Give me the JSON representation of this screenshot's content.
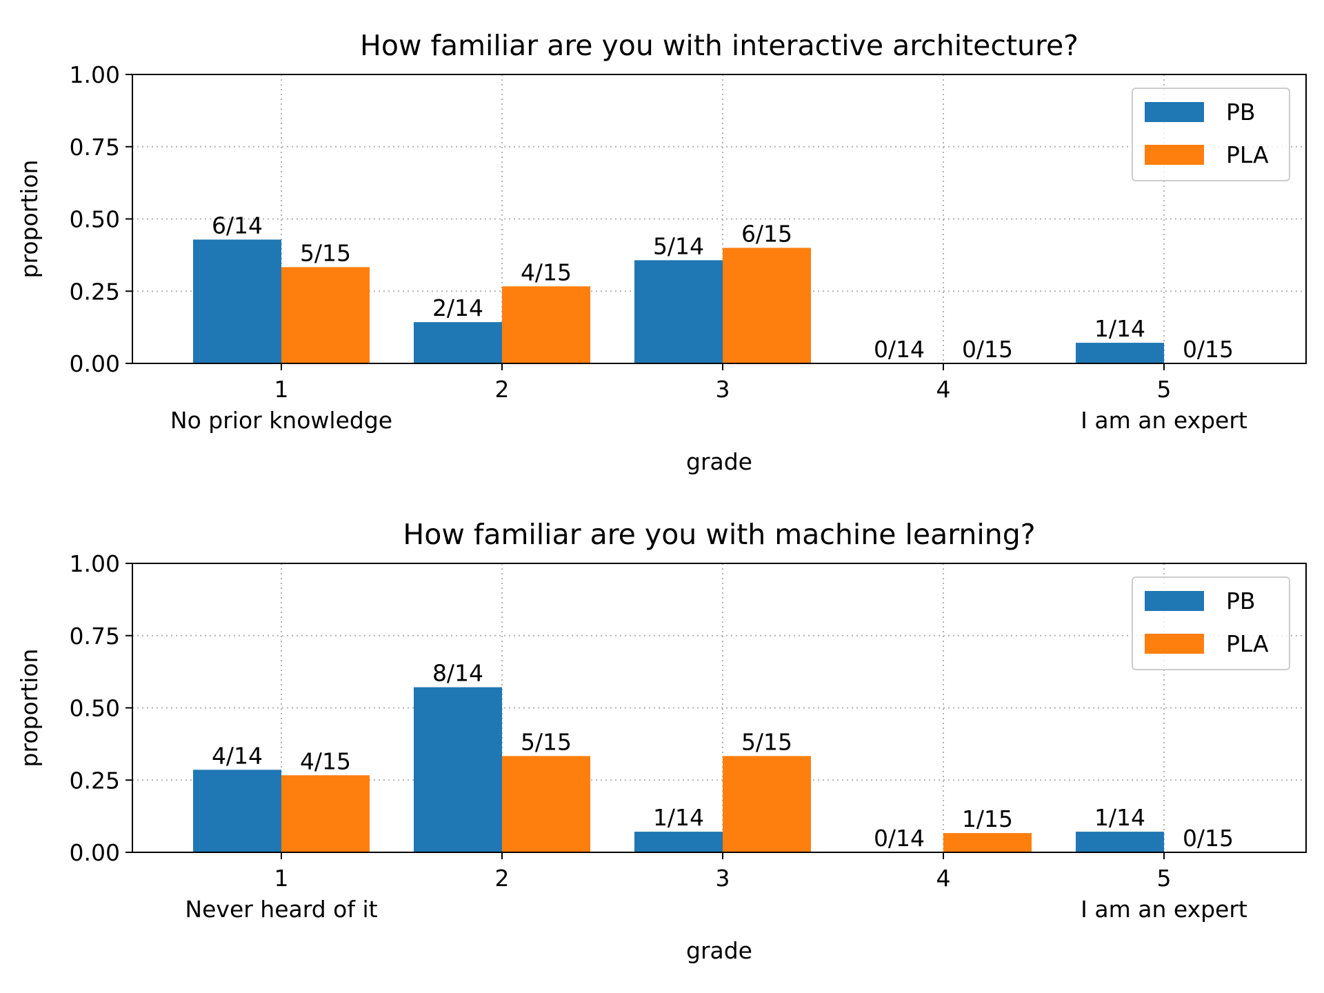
{
  "chart_data": [
    {
      "type": "bar",
      "title": "How familiar are you with interactive architecture?",
      "xlabel": "grade",
      "ylabel": "proportion",
      "ylim": [
        0,
        1
      ],
      "yticks": [
        "0.00",
        "0.25",
        "0.50",
        "0.75",
        "1.00"
      ],
      "categories": [
        "1",
        "2",
        "3",
        "4",
        "5"
      ],
      "category_notes": {
        "first": "No prior knowledge",
        "last": "I am an expert"
      },
      "legend_position": "top-right",
      "grid": true,
      "series": [
        {
          "name": "PB",
          "color": "#1f77b4",
          "values": [
            0.4286,
            0.1429,
            0.3571,
            0,
            0.0714
          ],
          "labels": [
            "6/14",
            "2/14",
            "5/14",
            "0/14",
            "1/14"
          ]
        },
        {
          "name": "PLA",
          "color": "#ff7f0e",
          "values": [
            0.3333,
            0.2667,
            0.4,
            0,
            0
          ],
          "labels": [
            "5/15",
            "4/15",
            "6/15",
            "0/15",
            "0/15"
          ]
        }
      ]
    },
    {
      "type": "bar",
      "title": "How familiar are you with machine learning?",
      "xlabel": "grade",
      "ylabel": "proportion",
      "ylim": [
        0,
        1
      ],
      "yticks": [
        "0.00",
        "0.25",
        "0.50",
        "0.75",
        "1.00"
      ],
      "categories": [
        "1",
        "2",
        "3",
        "4",
        "5"
      ],
      "category_notes": {
        "first": "Never heard of it",
        "last": "I am an expert"
      },
      "legend_position": "top-right",
      "grid": true,
      "series": [
        {
          "name": "PB",
          "color": "#1f77b4",
          "values": [
            0.2857,
            0.5714,
            0.0714,
            0,
            0.0714
          ],
          "labels": [
            "4/14",
            "8/14",
            "1/14",
            "0/14",
            "1/14"
          ]
        },
        {
          "name": "PLA",
          "color": "#ff7f0e",
          "values": [
            0.2667,
            0.3333,
            0.3333,
            0.0667,
            0
          ],
          "labels": [
            "4/15",
            "5/15",
            "5/15",
            "1/15",
            "0/15"
          ]
        }
      ]
    }
  ]
}
